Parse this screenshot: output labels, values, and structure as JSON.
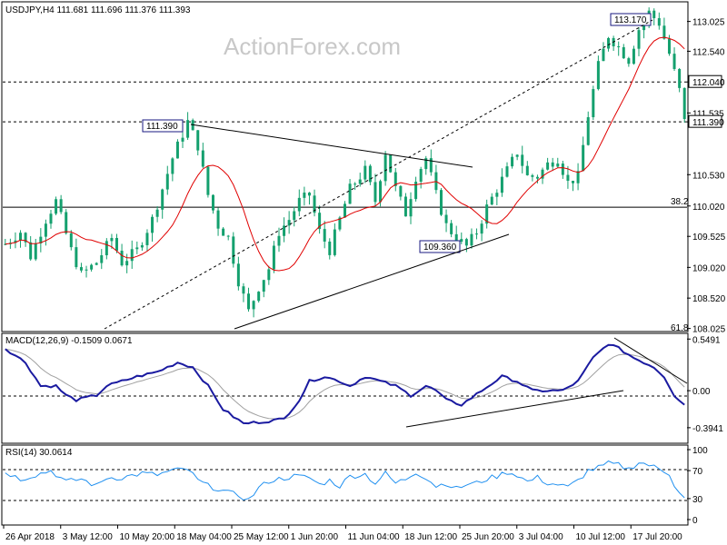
{
  "chart_data": [
    {
      "type": "candlestick",
      "title": "USDJPY,H4 111.681 111.696 111.376 111.393",
      "watermark": "ActionForex.com",
      "x_tick_labels": [
        "26 Apr 2018",
        "3 May 12:00",
        "10 May 20:00",
        "18 May 04:00",
        "25 May 12:00",
        "1 Jun 20:00",
        "11 Jun 04:00",
        "18 Jun 12:00",
        "25 Jun 20:00",
        "3 Jul 04:00",
        "10 Jul 12:00",
        "17 Jul 20:00"
      ],
      "y_tick_labels": [
        "113.025",
        "112.540",
        "112.040",
        "111.535",
        "111.390",
        "110.530",
        "110.020",
        "109.525",
        "109.020",
        "108.520",
        "108.025"
      ],
      "ylim": [
        107.99,
        113.33
      ],
      "price_path": [
        [
          0,
          109.4
        ],
        [
          3,
          109.6
        ],
        [
          5,
          109.2
        ],
        [
          8,
          109.8
        ],
        [
          10,
          110.1
        ],
        [
          13,
          109.3
        ],
        [
          15,
          108.9
        ],
        [
          18,
          109.1
        ],
        [
          21,
          109.5
        ],
        [
          23,
          109.1
        ],
        [
          26,
          109.3
        ],
        [
          29,
          109.8
        ],
        [
          31,
          110.3
        ],
        [
          33,
          110.8
        ],
        [
          36,
          111.39
        ],
        [
          38,
          111.0
        ],
        [
          40,
          110.2
        ],
        [
          42,
          109.7
        ],
        [
          44,
          109.5
        ],
        [
          46,
          108.8
        ],
        [
          48,
          108.3
        ],
        [
          50,
          108.7
        ],
        [
          52,
          109.0
        ],
        [
          54,
          109.6
        ],
        [
          56,
          109.8
        ],
        [
          58,
          110.1
        ],
        [
          60,
          110.2
        ],
        [
          62,
          109.6
        ],
        [
          64,
          109.3
        ],
        [
          66,
          109.8
        ],
        [
          68,
          110.3
        ],
        [
          71,
          110.6
        ],
        [
          73,
          110.1
        ],
        [
          75,
          110.9
        ],
        [
          77,
          110.3
        ],
        [
          79,
          109.9
        ],
        [
          81,
          110.5
        ],
        [
          83,
          110.8
        ],
        [
          85,
          110.2
        ],
        [
          87,
          109.7
        ],
        [
          89,
          109.5
        ],
        [
          91,
          109.36
        ],
        [
          93,
          109.6
        ],
        [
          95,
          110.0
        ],
        [
          97,
          110.3
        ],
        [
          99,
          110.6
        ],
        [
          101,
          110.9
        ],
        [
          103,
          110.5
        ],
        [
          105,
          110.5
        ],
        [
          107,
          110.7
        ],
        [
          109,
          110.8
        ],
        [
          111,
          110.4
        ],
        [
          113,
          110.5
        ],
        [
          115,
          111.5
        ],
        [
          117,
          112.3
        ],
        [
          119,
          112.8
        ],
        [
          121,
          112.6
        ],
        [
          123,
          112.4
        ],
        [
          125,
          112.9
        ],
        [
          127,
          113.17
        ],
        [
          129,
          113.0
        ],
        [
          131,
          112.5
        ],
        [
          133,
          111.9
        ],
        [
          134,
          111.39
        ]
      ],
      "candle_count": 135,
      "horizontal_levels": [
        {
          "value": 112.04,
          "label": "112.040",
          "style": "dashed"
        },
        {
          "value": 111.39,
          "label": "111.390",
          "style": "dashed"
        },
        {
          "value": 110.0,
          "label": "38.2",
          "style": "solid"
        }
      ],
      "annotations": [
        {
          "label": "113.170",
          "value": 113.17
        },
        {
          "label": "111.390",
          "value": 111.39
        },
        {
          "label": "109.360",
          "value": 109.36
        },
        {
          "label": "61.8",
          "value": 108.02
        }
      ],
      "moving_average_color": "#e00000",
      "candle_color": "#14a06e"
    },
    {
      "type": "line",
      "title": "MACD(12,26,9) -0.1509 0.0671",
      "y_tick_labels": [
        "0.5491",
        "0.00",
        "-0.3941"
      ],
      "ylim": [
        -0.55,
        0.6
      ],
      "macd_path": [
        [
          0,
          0.45
        ],
        [
          4,
          0.3
        ],
        [
          7,
          0.05
        ],
        [
          10,
          0.05
        ],
        [
          12,
          -0.05
        ],
        [
          14,
          -0.1
        ],
        [
          18,
          -0.05
        ],
        [
          20,
          0.05
        ],
        [
          23,
          0.1
        ],
        [
          26,
          0.15
        ],
        [
          30,
          0.2
        ],
        [
          34,
          0.3
        ],
        [
          37,
          0.25
        ],
        [
          40,
          0.05
        ],
        [
          43,
          -0.2
        ],
        [
          47,
          -0.35
        ],
        [
          51,
          -0.33
        ],
        [
          55,
          -0.3
        ],
        [
          58,
          -0.1
        ],
        [
          60,
          0.1
        ],
        [
          63,
          0.15
        ],
        [
          66,
          0.1
        ],
        [
          68,
          0.05
        ],
        [
          71,
          0.15
        ],
        [
          74,
          0.1
        ],
        [
          77,
          0.05
        ],
        [
          80,
          -0.05
        ],
        [
          83,
          0.05
        ],
        [
          85,
          0.0
        ],
        [
          87,
          -0.1
        ],
        [
          90,
          -0.15
        ],
        [
          94,
          0.0
        ],
        [
          98,
          0.15
        ],
        [
          101,
          0.1
        ],
        [
          104,
          0.0
        ],
        [
          107,
          0.0
        ],
        [
          110,
          0.0
        ],
        [
          113,
          0.1
        ],
        [
          116,
          0.35
        ],
        [
          119,
          0.5
        ],
        [
          121,
          0.45
        ],
        [
          124,
          0.35
        ],
        [
          126,
          0.3
        ],
        [
          128,
          0.25
        ],
        [
          130,
          0.15
        ],
        [
          132,
          -0.05
        ],
        [
          134,
          -0.15
        ]
      ],
      "signal_value": 0.0671,
      "macd_color": "#1a1aa0",
      "signal_color": "#a0a0a0"
    },
    {
      "type": "line",
      "title": "RSI(14) 30.0614",
      "y_tick_labels": [
        "100",
        "70",
        "30",
        "0"
      ],
      "ylim": [
        0,
        100
      ],
      "levels": [
        70,
        30
      ],
      "rsi_path": [
        [
          0,
          68
        ],
        [
          3,
          58
        ],
        [
          6,
          64
        ],
        [
          9,
          70
        ],
        [
          12,
          54
        ],
        [
          15,
          58
        ],
        [
          18,
          48
        ],
        [
          20,
          60
        ],
        [
          23,
          60
        ],
        [
          27,
          66
        ],
        [
          30,
          64
        ],
        [
          33,
          70
        ],
        [
          36,
          72
        ],
        [
          38,
          56
        ],
        [
          40,
          48
        ],
        [
          42,
          44
        ],
        [
          44,
          38
        ],
        [
          46,
          35
        ],
        [
          48,
          28
        ],
        [
          50,
          45
        ],
        [
          52,
          55
        ],
        [
          54,
          58
        ],
        [
          57,
          62
        ],
        [
          60,
          60
        ],
        [
          62,
          50
        ],
        [
          64,
          56
        ],
        [
          66,
          48
        ],
        [
          68,
          62
        ],
        [
          71,
          65
        ],
        [
          73,
          52
        ],
        [
          75,
          66
        ],
        [
          77,
          52
        ],
        [
          79,
          58
        ],
        [
          81,
          68
        ],
        [
          83,
          60
        ],
        [
          85,
          48
        ],
        [
          87,
          52
        ],
        [
          89,
          44
        ],
        [
          91,
          50
        ],
        [
          93,
          52
        ],
        [
          95,
          58
        ],
        [
          97,
          62
        ],
        [
          99,
          68
        ],
        [
          101,
          64
        ],
        [
          103,
          54
        ],
        [
          105,
          60
        ],
        [
          107,
          52
        ],
        [
          109,
          50
        ],
        [
          111,
          46
        ],
        [
          113,
          56
        ],
        [
          115,
          70
        ],
        [
          117,
          74
        ],
        [
          119,
          80
        ],
        [
          121,
          78
        ],
        [
          123,
          72
        ],
        [
          125,
          82
        ],
        [
          127,
          78
        ],
        [
          129,
          72
        ],
        [
          131,
          66
        ],
        [
          132,
          50
        ],
        [
          133,
          40
        ],
        [
          134,
          30
        ]
      ],
      "rsi_color": "#2090f0"
    }
  ]
}
